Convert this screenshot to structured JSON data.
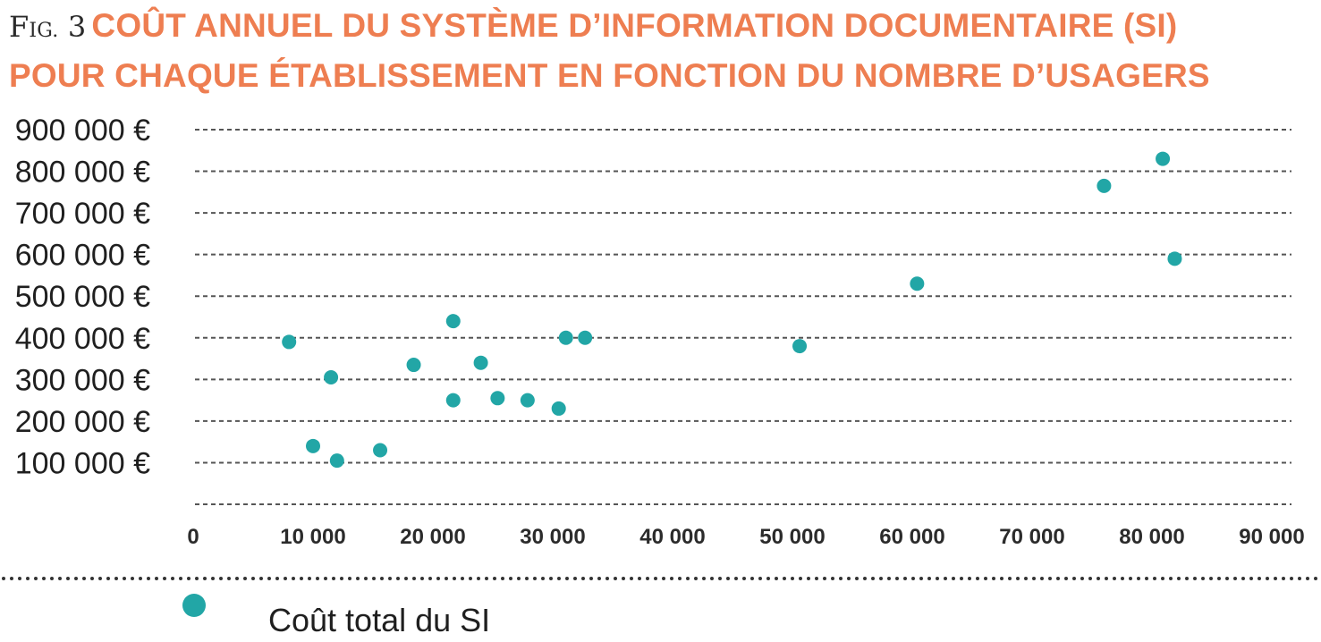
{
  "figure": {
    "label_prefix_f": "F",
    "label_prefix_rest": "IG.",
    "label_number": "3",
    "title_line1": "COÛT ANNUEL DU SYSTÈME D’INFORMATION DOCUMENTAIRE (SI)",
    "title_line2": "POUR CHAQUE ÉTABLISSEMENT EN FONCTION DU NOMBRE D’USAGERS"
  },
  "colors": {
    "title": "#ee7e51",
    "point": "#22a6a6",
    "grid": "#555555"
  },
  "chart_data": {
    "type": "scatter",
    "title": "COÛT ANNUEL DU SYSTÈME D’INFORMATION DOCUMENTAIRE (SI) POUR CHAQUE ÉTABLISSEMENT EN FONCTION DU NOMBRE D’USAGERS",
    "xlabel": "",
    "ylabel": "",
    "xlim": [
      0,
      90000
    ],
    "ylim": [
      0,
      900000
    ],
    "x_ticks": [
      0,
      10000,
      20000,
      30000,
      40000,
      50000,
      60000,
      70000,
      80000,
      90000
    ],
    "x_tick_labels": [
      "0",
      "10 000",
      "20 000",
      "30 000",
      "40 000",
      "50 000",
      "60 000",
      "70 000",
      "80 000",
      "90 000"
    ],
    "y_ticks": [
      100000,
      200000,
      300000,
      400000,
      500000,
      600000,
      700000,
      800000,
      900000
    ],
    "y_tick_labels": [
      "100 000 €",
      "200 000 €",
      "300 000 €",
      "400 000 €",
      "500 000 €",
      "600 000 €",
      "700 000 €",
      "800 000 €",
      "900 000 €"
    ],
    "grid": "horizontal dashed",
    "legend_position": "bottom",
    "series": [
      {
        "name": "Coût total du SI",
        "color": "#22a6a6",
        "points": [
          {
            "x": 8000,
            "y": 390000
          },
          {
            "x": 10000,
            "y": 140000
          },
          {
            "x": 11500,
            "y": 305000
          },
          {
            "x": 12000,
            "y": 105000
          },
          {
            "x": 15600,
            "y": 130000
          },
          {
            "x": 18400,
            "y": 335000
          },
          {
            "x": 21700,
            "y": 440000
          },
          {
            "x": 21700,
            "y": 250000
          },
          {
            "x": 24000,
            "y": 340000
          },
          {
            "x": 25400,
            "y": 255000
          },
          {
            "x": 27900,
            "y": 250000
          },
          {
            "x": 30500,
            "y": 230000
          },
          {
            "x": 31100,
            "y": 400000
          },
          {
            "x": 32700,
            "y": 400000
          },
          {
            "x": 50600,
            "y": 380000
          },
          {
            "x": 60400,
            "y": 530000
          },
          {
            "x": 76000,
            "y": 765000
          },
          {
            "x": 80900,
            "y": 830000
          },
          {
            "x": 81900,
            "y": 590000
          }
        ]
      }
    ]
  }
}
